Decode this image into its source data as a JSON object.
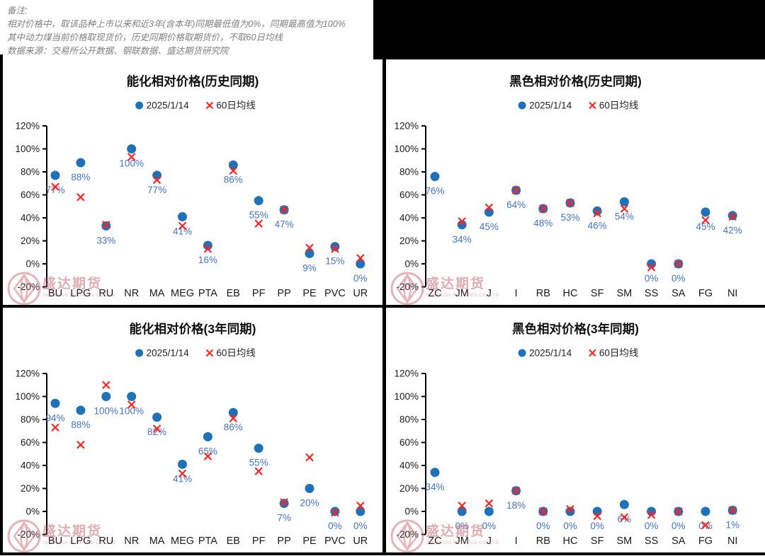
{
  "notes": {
    "lines": [
      "备注:",
      "相对价格中，取该品种上市以来和近3年(含本年)同期最低值为0%，同期最高值为100%",
      "其中动力煤当前价格取现货价，历史同期价格取期货价，不取60日均线",
      "数据来源：交易所公开数据、钢联数据、盛达期货研究院"
    ]
  },
  "watermark": {
    "name": "盛达期货",
    "subtitle": "SHENGDA FUTURES CO.,LTD"
  },
  "colors": {
    "point_blue": "#1F72B8",
    "cross_red": "#FF2222",
    "label_blue": "#4472C4",
    "axis_black": "#000000",
    "title_black": "#111111",
    "category_black": "#1a1a1a",
    "note_gray": "#7F7F7F",
    "watermark_red": "#C96A72",
    "redaction_black": "#000000"
  },
  "chart_data": [
    {
      "type": "scatter",
      "title": "能化相对价格(历史同期)",
      "legend": [
        "2025/1/14",
        "60日均线"
      ],
      "legend_position": "top",
      "grid": false,
      "ylim": [
        -20,
        120
      ],
      "yticks": {
        "labels": [
          "120%",
          "100%",
          "80%",
          "60%",
          "40%",
          "20%",
          "0%",
          "-20%"
        ],
        "values": [
          120,
          100,
          80,
          60,
          40,
          20,
          0,
          -20
        ]
      },
      "categories": [
        "BU",
        "LPG",
        "RU",
        "NR",
        "MA",
        "MEG",
        "PTA",
        "EB",
        "PF",
        "PP",
        "PE",
        "PVC",
        "UR"
      ],
      "series": [
        {
          "name": "2025/1/14",
          "marker": "circle",
          "values": [
            77,
            88,
            33,
            100,
            77,
            41,
            16,
            86,
            55,
            47,
            9,
            15,
            0
          ]
        },
        {
          "name": "60日均线",
          "marker": "x",
          "values": [
            67,
            58,
            34,
            93,
            73,
            33,
            13,
            81,
            35,
            47,
            14,
            13,
            5
          ]
        }
      ],
      "point_labels": [
        "77%",
        "88%",
        "33%",
        "100%",
        "77%",
        "41%",
        "16%",
        "86%",
        "55%",
        "47%",
        "9%",
        "15%",
        "0%"
      ]
    },
    {
      "type": "scatter",
      "title": "黑色相对价格(历史同期)",
      "legend": [
        "2025/1/14",
        "60日均线"
      ],
      "legend_position": "top",
      "grid": false,
      "ylim": [
        -20,
        120
      ],
      "yticks": {
        "labels": [
          "120%",
          "100%",
          "80%",
          "60%",
          "40%",
          "20%",
          "0%",
          "-20%"
        ],
        "values": [
          120,
          100,
          80,
          60,
          40,
          20,
          0,
          -20
        ]
      },
      "categories": [
        "ZC",
        "JM",
        "J",
        "I",
        "RB",
        "HC",
        "SF",
        "SM",
        "SS",
        "SA",
        "FG",
        "NI"
      ],
      "series": [
        {
          "name": "2025/1/14",
          "marker": "circle",
          "values": [
            76,
            34,
            45,
            64,
            48,
            53,
            46,
            54,
            0,
            0,
            45,
            42
          ]
        },
        {
          "name": "60日均线",
          "marker": "x",
          "values": [
            null,
            37,
            49,
            64,
            48,
            53,
            44,
            48,
            -3,
            0,
            38,
            41
          ]
        }
      ],
      "point_labels": [
        "76%",
        "34%",
        "45%",
        "64%",
        "48%",
        "53%",
        "46%",
        "54%",
        "0%",
        "0%",
        "45%",
        "42%"
      ]
    },
    {
      "type": "scatter",
      "title": "能化相对价格(3年同期)",
      "legend": [
        "2025/1/14",
        "60日均线"
      ],
      "legend_position": "top",
      "grid": false,
      "ylim": [
        -20,
        120
      ],
      "yticks": {
        "labels": [
          "120%",
          "100%",
          "80%",
          "60%",
          "40%",
          "20%",
          "0%",
          "-20%"
        ],
        "values": [
          120,
          100,
          80,
          60,
          40,
          20,
          0,
          -20
        ]
      },
      "categories": [
        "BU",
        "LPG",
        "RU",
        "NR",
        "MA",
        "MEG",
        "PTA",
        "EB",
        "PF",
        "PP",
        "PE",
        "PVC",
        "UR"
      ],
      "series": [
        {
          "name": "2025/1/14",
          "marker": "circle",
          "values": [
            94,
            88,
            100,
            100,
            82,
            41,
            65,
            86,
            55,
            7,
            20,
            0,
            0
          ]
        },
        {
          "name": "60日均线",
          "marker": "x",
          "values": [
            73,
            58,
            110,
            93,
            72,
            33,
            48,
            81,
            35,
            8,
            47,
            -1,
            5
          ]
        }
      ],
      "point_labels": [
        "94%",
        "88%",
        "100%",
        "100%",
        "82%",
        "41%",
        "65%",
        "86%",
        "55%",
        "7%",
        "20%",
        "0%",
        "0%"
      ]
    },
    {
      "type": "scatter",
      "title": "黑色相对价格(3年同期)",
      "legend": [
        "2025/1/14",
        "60日均线"
      ],
      "legend_position": "top",
      "grid": false,
      "ylim": [
        -20,
        120
      ],
      "yticks": {
        "labels": [
          "120%",
          "100%",
          "80%",
          "60%",
          "40%",
          "20%",
          "0%",
          "-20%"
        ],
        "values": [
          120,
          100,
          80,
          60,
          40,
          20,
          0,
          -20
        ]
      },
      "categories": [
        "ZC",
        "JM",
        "J",
        "I",
        "RB",
        "HC",
        "SF",
        "SM",
        "SS",
        "SA",
        "FG",
        "NI"
      ],
      "series": [
        {
          "name": "2025/1/14",
          "marker": "circle",
          "values": [
            34,
            0,
            0,
            18,
            0,
            0,
            0,
            6,
            0,
            0,
            0,
            1
          ]
        },
        {
          "name": "60日均线",
          "marker": "x",
          "values": [
            null,
            5,
            7,
            18,
            0,
            2,
            -4,
            -5,
            -3,
            0,
            -12,
            1
          ]
        }
      ],
      "point_labels": [
        "34%",
        "0%",
        "0%",
        "18%",
        "0%",
        "0%",
        "0%",
        "6%",
        "0%",
        "0%",
        "0%",
        "1%"
      ]
    }
  ]
}
